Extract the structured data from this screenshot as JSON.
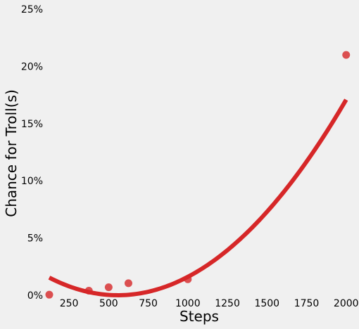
{
  "chart_data": {
    "type": "scatter",
    "title": "",
    "xlabel": "Steps",
    "ylabel": "Chance for Troll(s)",
    "xlim": [
      125,
      2050
    ],
    "ylim": [
      0,
      25
    ],
    "x_ticks": [
      250,
      500,
      750,
      1000,
      1250,
      1500,
      1750,
      2000
    ],
    "y_ticks": [
      0,
      5,
      10,
      15,
      20,
      25
    ],
    "y_tick_format": "percent",
    "grid": false,
    "colors": {
      "background": "#f0f0f0",
      "points": "#d62728",
      "fit_line": "#d62728"
    },
    "series": [
      {
        "kind": "points",
        "x": [
          125,
          375,
          500,
          625,
          1000,
          2000
        ],
        "y": [
          0.05,
          0.4,
          0.7,
          1.05,
          1.4,
          21.0
        ]
      },
      {
        "kind": "quadratic-fit",
        "coefficients": [
          2.56,
          -0.009165,
          8.214e-06
        ],
        "x_range": [
          125,
          2000
        ]
      }
    ]
  }
}
